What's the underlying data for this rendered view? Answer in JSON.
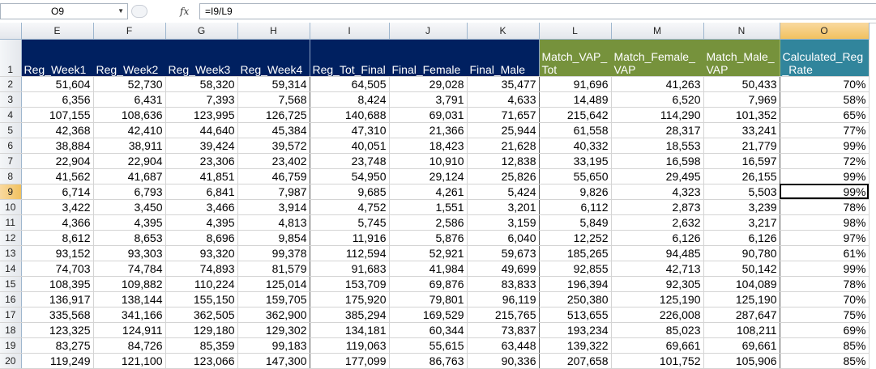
{
  "formula_bar": {
    "cell_ref": "O9",
    "fx_label": "fx",
    "formula": "=I9/L9"
  },
  "sheet": {
    "columns": [
      "E",
      "F",
      "G",
      "H",
      "I",
      "J",
      "K",
      "L",
      "M",
      "N",
      "O"
    ],
    "selected_column": "O",
    "selected_row": "9",
    "header_row_number": "1",
    "headers": [
      "Reg_Week1",
      "Reg_Week2",
      "Reg_Week3",
      "Reg_Week4",
      "Reg_Tot_Final",
      "Final_Female",
      "Final_Male",
      "Match_VAP_ Tot",
      "Match_Female_ VAP",
      "Match_Male_ VAP",
      "Calculated_Reg _Rate"
    ],
    "header_colors": {
      "navy": "#002060",
      "olive": "#76923c",
      "teal": "#31859c"
    },
    "rows": [
      {
        "n": "2",
        "cells": [
          "51,604",
          "52,730",
          "58,320",
          "59,314",
          "64,505",
          "29,028",
          "35,477",
          "91,696",
          "41,263",
          "50,433",
          "70%"
        ]
      },
      {
        "n": "3",
        "cells": [
          "6,356",
          "6,431",
          "7,393",
          "7,568",
          "8,424",
          "3,791",
          "4,633",
          "14,489",
          "6,520",
          "7,969",
          "58%"
        ]
      },
      {
        "n": "4",
        "cells": [
          "107,155",
          "108,636",
          "123,995",
          "126,725",
          "140,688",
          "69,031",
          "71,657",
          "215,642",
          "114,290",
          "101,352",
          "65%"
        ]
      },
      {
        "n": "5",
        "cells": [
          "42,368",
          "42,410",
          "44,640",
          "45,384",
          "47,310",
          "21,366",
          "25,944",
          "61,558",
          "28,317",
          "33,241",
          "77%"
        ]
      },
      {
        "n": "6",
        "cells": [
          "38,884",
          "38,911",
          "39,424",
          "39,572",
          "40,051",
          "18,423",
          "21,628",
          "40,332",
          "18,553",
          "21,779",
          "99%"
        ]
      },
      {
        "n": "7",
        "cells": [
          "22,904",
          "22,904",
          "23,306",
          "23,402",
          "23,748",
          "10,910",
          "12,838",
          "33,195",
          "16,598",
          "16,597",
          "72%"
        ]
      },
      {
        "n": "8",
        "cells": [
          "41,562",
          "41,687",
          "41,851",
          "46,759",
          "54,950",
          "29,124",
          "25,826",
          "55,650",
          "29,495",
          "26,155",
          "99%"
        ]
      },
      {
        "n": "9",
        "cells": [
          "6,714",
          "6,793",
          "6,841",
          "7,987",
          "9,685",
          "4,261",
          "5,424",
          "9,826",
          "4,323",
          "5,503",
          "99%"
        ]
      },
      {
        "n": "10",
        "cells": [
          "3,422",
          "3,450",
          "3,466",
          "3,914",
          "4,752",
          "1,551",
          "3,201",
          "6,112",
          "2,873",
          "3,239",
          "78%"
        ]
      },
      {
        "n": "11",
        "cells": [
          "4,366",
          "4,395",
          "4,395",
          "4,813",
          "5,745",
          "2,586",
          "3,159",
          "5,849",
          "2,632",
          "3,217",
          "98%"
        ]
      },
      {
        "n": "12",
        "cells": [
          "8,612",
          "8,653",
          "8,696",
          "9,854",
          "11,916",
          "5,876",
          "6,040",
          "12,252",
          "6,126",
          "6,126",
          "97%"
        ]
      },
      {
        "n": "13",
        "cells": [
          "93,152",
          "93,303",
          "93,320",
          "99,378",
          "112,594",
          "52,921",
          "59,673",
          "185,265",
          "94,485",
          "90,780",
          "61%"
        ]
      },
      {
        "n": "14",
        "cells": [
          "74,703",
          "74,784",
          "74,893",
          "81,579",
          "91,683",
          "41,984",
          "49,699",
          "92,855",
          "42,713",
          "50,142",
          "99%"
        ]
      },
      {
        "n": "15",
        "cells": [
          "108,395",
          "109,882",
          "110,224",
          "125,014",
          "153,709",
          "69,876",
          "83,833",
          "196,394",
          "92,305",
          "104,089",
          "78%"
        ]
      },
      {
        "n": "16",
        "cells": [
          "136,917",
          "138,144",
          "155,150",
          "159,705",
          "175,920",
          "79,801",
          "96,119",
          "250,380",
          "125,190",
          "125,190",
          "70%"
        ]
      },
      {
        "n": "17",
        "cells": [
          "335,568",
          "341,166",
          "362,505",
          "362,900",
          "385,294",
          "169,529",
          "215,765",
          "513,655",
          "226,008",
          "287,647",
          "75%"
        ]
      },
      {
        "n": "18",
        "cells": [
          "123,325",
          "124,911",
          "129,180",
          "129,302",
          "134,181",
          "60,344",
          "73,837",
          "193,234",
          "85,023",
          "108,211",
          "69%"
        ]
      },
      {
        "n": "19",
        "cells": [
          "83,275",
          "84,726",
          "85,359",
          "99,183",
          "119,063",
          "55,615",
          "63,448",
          "139,322",
          "69,661",
          "69,661",
          "85%"
        ]
      },
      {
        "n": "20",
        "cells": [
          "119,249",
          "121,100",
          "123,066",
          "147,300",
          "177,099",
          "86,763",
          "90,336",
          "207,658",
          "101,752",
          "105,906",
          "85%"
        ]
      }
    ]
  }
}
